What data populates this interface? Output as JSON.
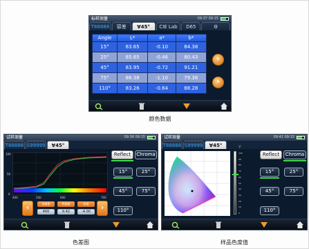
{
  "top_screen": {
    "title": "标样测量",
    "time": "09:37 09:15",
    "tabs": [
      "T88888",
      "容差",
      "∀45°",
      "CIE Lab",
      "D65",
      "⚙"
    ],
    "table": {
      "headers": [
        "Angle",
        "L*",
        "a*",
        "b*"
      ],
      "rows": [
        [
          "15°",
          "83.65",
          "-0.10",
          "84.38"
        ],
        [
          "25°",
          "85.65",
          "-0.46",
          "80.43"
        ],
        [
          "45°",
          "83.95",
          "-0.72",
          "91.21"
        ],
        [
          "75°",
          "86.38",
          "-1.10",
          "79.36"
        ],
        [
          "110°",
          "83.26",
          "-0.64",
          "88.28"
        ]
      ]
    },
    "caption": "颜色数据"
  },
  "bottom_left_screen": {
    "title": "试样测量",
    "time": "09:36 09:15",
    "tabs": [
      "T88888",
      "S99999",
      "∀45°"
    ],
    "buttons": [
      "Reflect",
      "Chroma",
      "15°",
      "25°",
      "45°",
      "75°",
      "110°"
    ],
    "y_ticks": [
      "100",
      "50",
      "0"
    ],
    "x_ticks": [
      "400",
      "500",
      "600",
      "700"
    ],
    "mini_heads": [
      "亮度差",
      "色相差",
      "彩度"
    ],
    "mini_values": [
      "400",
      "9.42",
      "-4.00"
    ],
    "caption": "色差图"
  },
  "bottom_right_screen": {
    "title": "试样测量",
    "time": "09:41 09:15",
    "tabs": [
      "T88888",
      "S99999",
      "∀45°"
    ],
    "buttons": [
      "Reflect",
      "Chroma",
      "15°",
      "25°",
      "45°",
      "75°",
      "110°"
    ],
    "y_label": "Y",
    "y_ticks": [
      "100",
      "90",
      "80",
      "70",
      "60",
      "50",
      "40",
      "30",
      "20",
      "10",
      "0"
    ],
    "caption": "样品色度值"
  }
}
